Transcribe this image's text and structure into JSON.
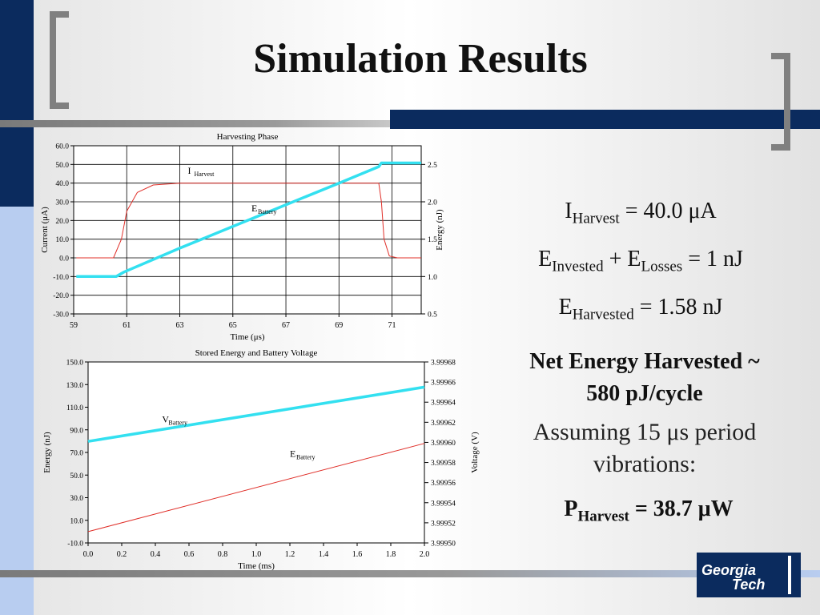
{
  "slide": {
    "title": "Simulation Results",
    "colors": {
      "navy": "#0b2b5e",
      "light_blue": "#b8cdf0",
      "gray": "#808080",
      "cyan": "#33e0f0",
      "red": "#e0302a"
    }
  },
  "equations": {
    "i_harvest": {
      "sym": "I",
      "sub": "Harvest",
      "rest": " = 40.0 μA"
    },
    "e_invested": {
      "sym1": "E",
      "sub1": "Invested",
      "mid": " + E",
      "sub2": "Losses",
      "rest": " = 1 nJ"
    },
    "e_harvested": {
      "sym": "E",
      "sub": "Harvested",
      "rest": " = 1.58 nJ"
    },
    "net_line1": "Net Energy Harvested ~",
    "net_line2": "580 pJ/cycle",
    "assume_line1": "Assuming 15 μs period",
    "assume_line2": "vibrations:",
    "p_harvest": {
      "sym": "P",
      "sub": "Harvest",
      "rest": " = 38.7 μW"
    }
  },
  "logo": {
    "line1": "Georgia",
    "line2": "Tech"
  },
  "chart_data": [
    {
      "type": "line",
      "title": "Harvesting Phase",
      "xlabel": "Time (μs)",
      "ylabel": "Current (μA)",
      "y2label": "Energy (nJ)",
      "xlim": [
        59,
        72.1
      ],
      "ylim": [
        -30,
        60
      ],
      "y2lim": [
        0.5,
        2.75
      ],
      "xticks": [
        "59",
        "61",
        "63",
        "65",
        "67",
        "69",
        "71"
      ],
      "xtick_values": [
        59,
        61,
        63,
        65,
        67,
        69,
        71
      ],
      "yticks": [
        "60.0",
        "50.0",
        "40.0",
        "30.0",
        "20.0",
        "10.0",
        "0.0",
        "-10.0",
        "-20.0",
        "-30.0"
      ],
      "ytick_values": [
        60,
        50,
        40,
        30,
        20,
        10,
        0,
        -10,
        -20,
        -30
      ],
      "y2ticks": [
        "2.5",
        "2.0",
        "1.5",
        "1.0",
        "0.5"
      ],
      "y2tick_values": [
        2.5,
        2.0,
        1.5,
        1.0,
        0.5
      ],
      "grid": true,
      "series": [
        {
          "name": "I",
          "sub": "Harvest",
          "axis": "y",
          "color": "#e0302a",
          "label_pos": [
            63.3,
            45
          ],
          "x": [
            59.1,
            60.5,
            60.8,
            61.0,
            61.4,
            62.0,
            63.0,
            70.5,
            70.6,
            70.7,
            70.9,
            71.2,
            72.1
          ],
          "y": [
            0,
            0,
            10,
            25,
            35,
            39,
            40,
            40,
            30,
            10,
            1,
            0,
            0
          ]
        },
        {
          "name": "E",
          "sub": "Battery",
          "axis": "y2",
          "color": "#33e0f0",
          "label_pos": [
            65.7,
            1.87
          ],
          "x": [
            59.1,
            60.6,
            60.9,
            63.0,
            65.0,
            67.0,
            69.0,
            70.5,
            70.6,
            72.1
          ],
          "y": [
            1.0,
            1.0,
            1.06,
            1.38,
            1.67,
            1.96,
            2.25,
            2.47,
            2.52,
            2.52
          ]
        }
      ]
    },
    {
      "type": "line",
      "title": "Stored Energy and Battery Voltage",
      "xlabel": "Time (ms)",
      "ylabel": "Energy (nJ)",
      "y2label": "Voltage (V)",
      "xlim": [
        0,
        2.0
      ],
      "ylim": [
        -10,
        150
      ],
      "y2lim": [
        3.9995,
        3.99968
      ],
      "xticks": [
        "0.0",
        "0.2",
        "0.4",
        "0.6",
        "0.8",
        "1.0",
        "1.2",
        "1.4",
        "1.6",
        "1.8",
        "2.0"
      ],
      "xtick_values": [
        0,
        0.2,
        0.4,
        0.6,
        0.8,
        1.0,
        1.2,
        1.4,
        1.6,
        1.8,
        2.0
      ],
      "yticks": [
        "150.0",
        "130.0",
        "110.0",
        "90.0",
        "70.0",
        "50.0",
        "30.0",
        "10.0",
        "-10.0"
      ],
      "ytick_values": [
        150,
        130,
        110,
        90,
        70,
        50,
        30,
        10,
        -10
      ],
      "y2ticks": [
        "3.99968",
        "3.99966",
        "3.99964",
        "3.99962",
        "3.99960",
        "3.99958",
        "3.99956",
        "3.99954",
        "3.99952",
        "3.99950"
      ],
      "y2tick_values": [
        3.99968,
        3.99966,
        3.99964,
        3.99962,
        3.9996,
        3.99958,
        3.99956,
        3.99954,
        3.99952,
        3.9995
      ],
      "grid": false,
      "series": [
        {
          "name": "V",
          "sub": "Battery",
          "axis": "y2",
          "color": "#33e0f0",
          "label_pos": [
            0.44,
            3.99962
          ],
          "x": [
            0,
            2.0
          ],
          "y": [
            3.999601,
            3.999655
          ]
        },
        {
          "name": "E",
          "sub": "Battery",
          "axis": "y",
          "color": "#e0302a",
          "label_pos": [
            1.2,
            66
          ],
          "x": [
            0,
            2.0
          ],
          "y": [
            0,
            78
          ]
        }
      ]
    }
  ]
}
